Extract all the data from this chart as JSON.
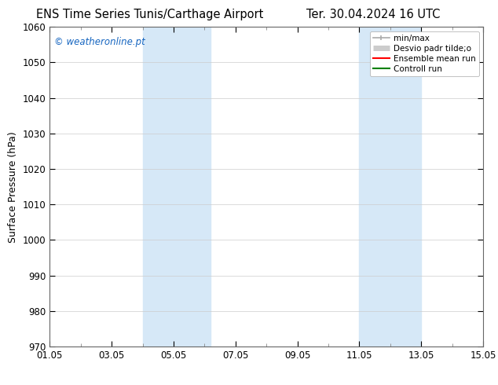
{
  "title_left": "ENS Time Series Tunis/Carthage Airport",
  "title_right": "Ter. 30.04.2024 16 UTC",
  "ylabel": "Surface Pressure (hPa)",
  "ylim": [
    970,
    1060
  ],
  "yticks": [
    970,
    980,
    990,
    1000,
    1010,
    1020,
    1030,
    1040,
    1050,
    1060
  ],
  "xtick_labels": [
    "01.05",
    "03.05",
    "05.05",
    "07.05",
    "09.05",
    "11.05",
    "13.05",
    "15.05"
  ],
  "xtick_positions": [
    0,
    2,
    4,
    6,
    8,
    10,
    12,
    14
  ],
  "xlim": [
    0,
    14
  ],
  "shaded_bands": [
    {
      "x_start": 3,
      "x_end": 5.2
    },
    {
      "x_start": 10,
      "x_end": 12
    }
  ],
  "shaded_color": "#d6e8f7",
  "background_color": "#ffffff",
  "watermark_text": "© weatheronline.pt",
  "watermark_color": "#1565c0",
  "legend_entries": [
    {
      "label": "min/max",
      "color": "#aaaaaa",
      "lw": 1.2
    },
    {
      "label": "Desvio padr tilde;o",
      "color": "#cccccc",
      "lw": 5
    },
    {
      "label": "Ensemble mean run",
      "color": "#ff0000",
      "lw": 1.5
    },
    {
      "label": "Controll run",
      "color": "#008000",
      "lw": 1.5
    }
  ],
  "title_fontsize": 10.5,
  "ylabel_fontsize": 9,
  "tick_fontsize": 8.5,
  "watermark_fontsize": 8.5,
  "legend_fontsize": 7.5
}
